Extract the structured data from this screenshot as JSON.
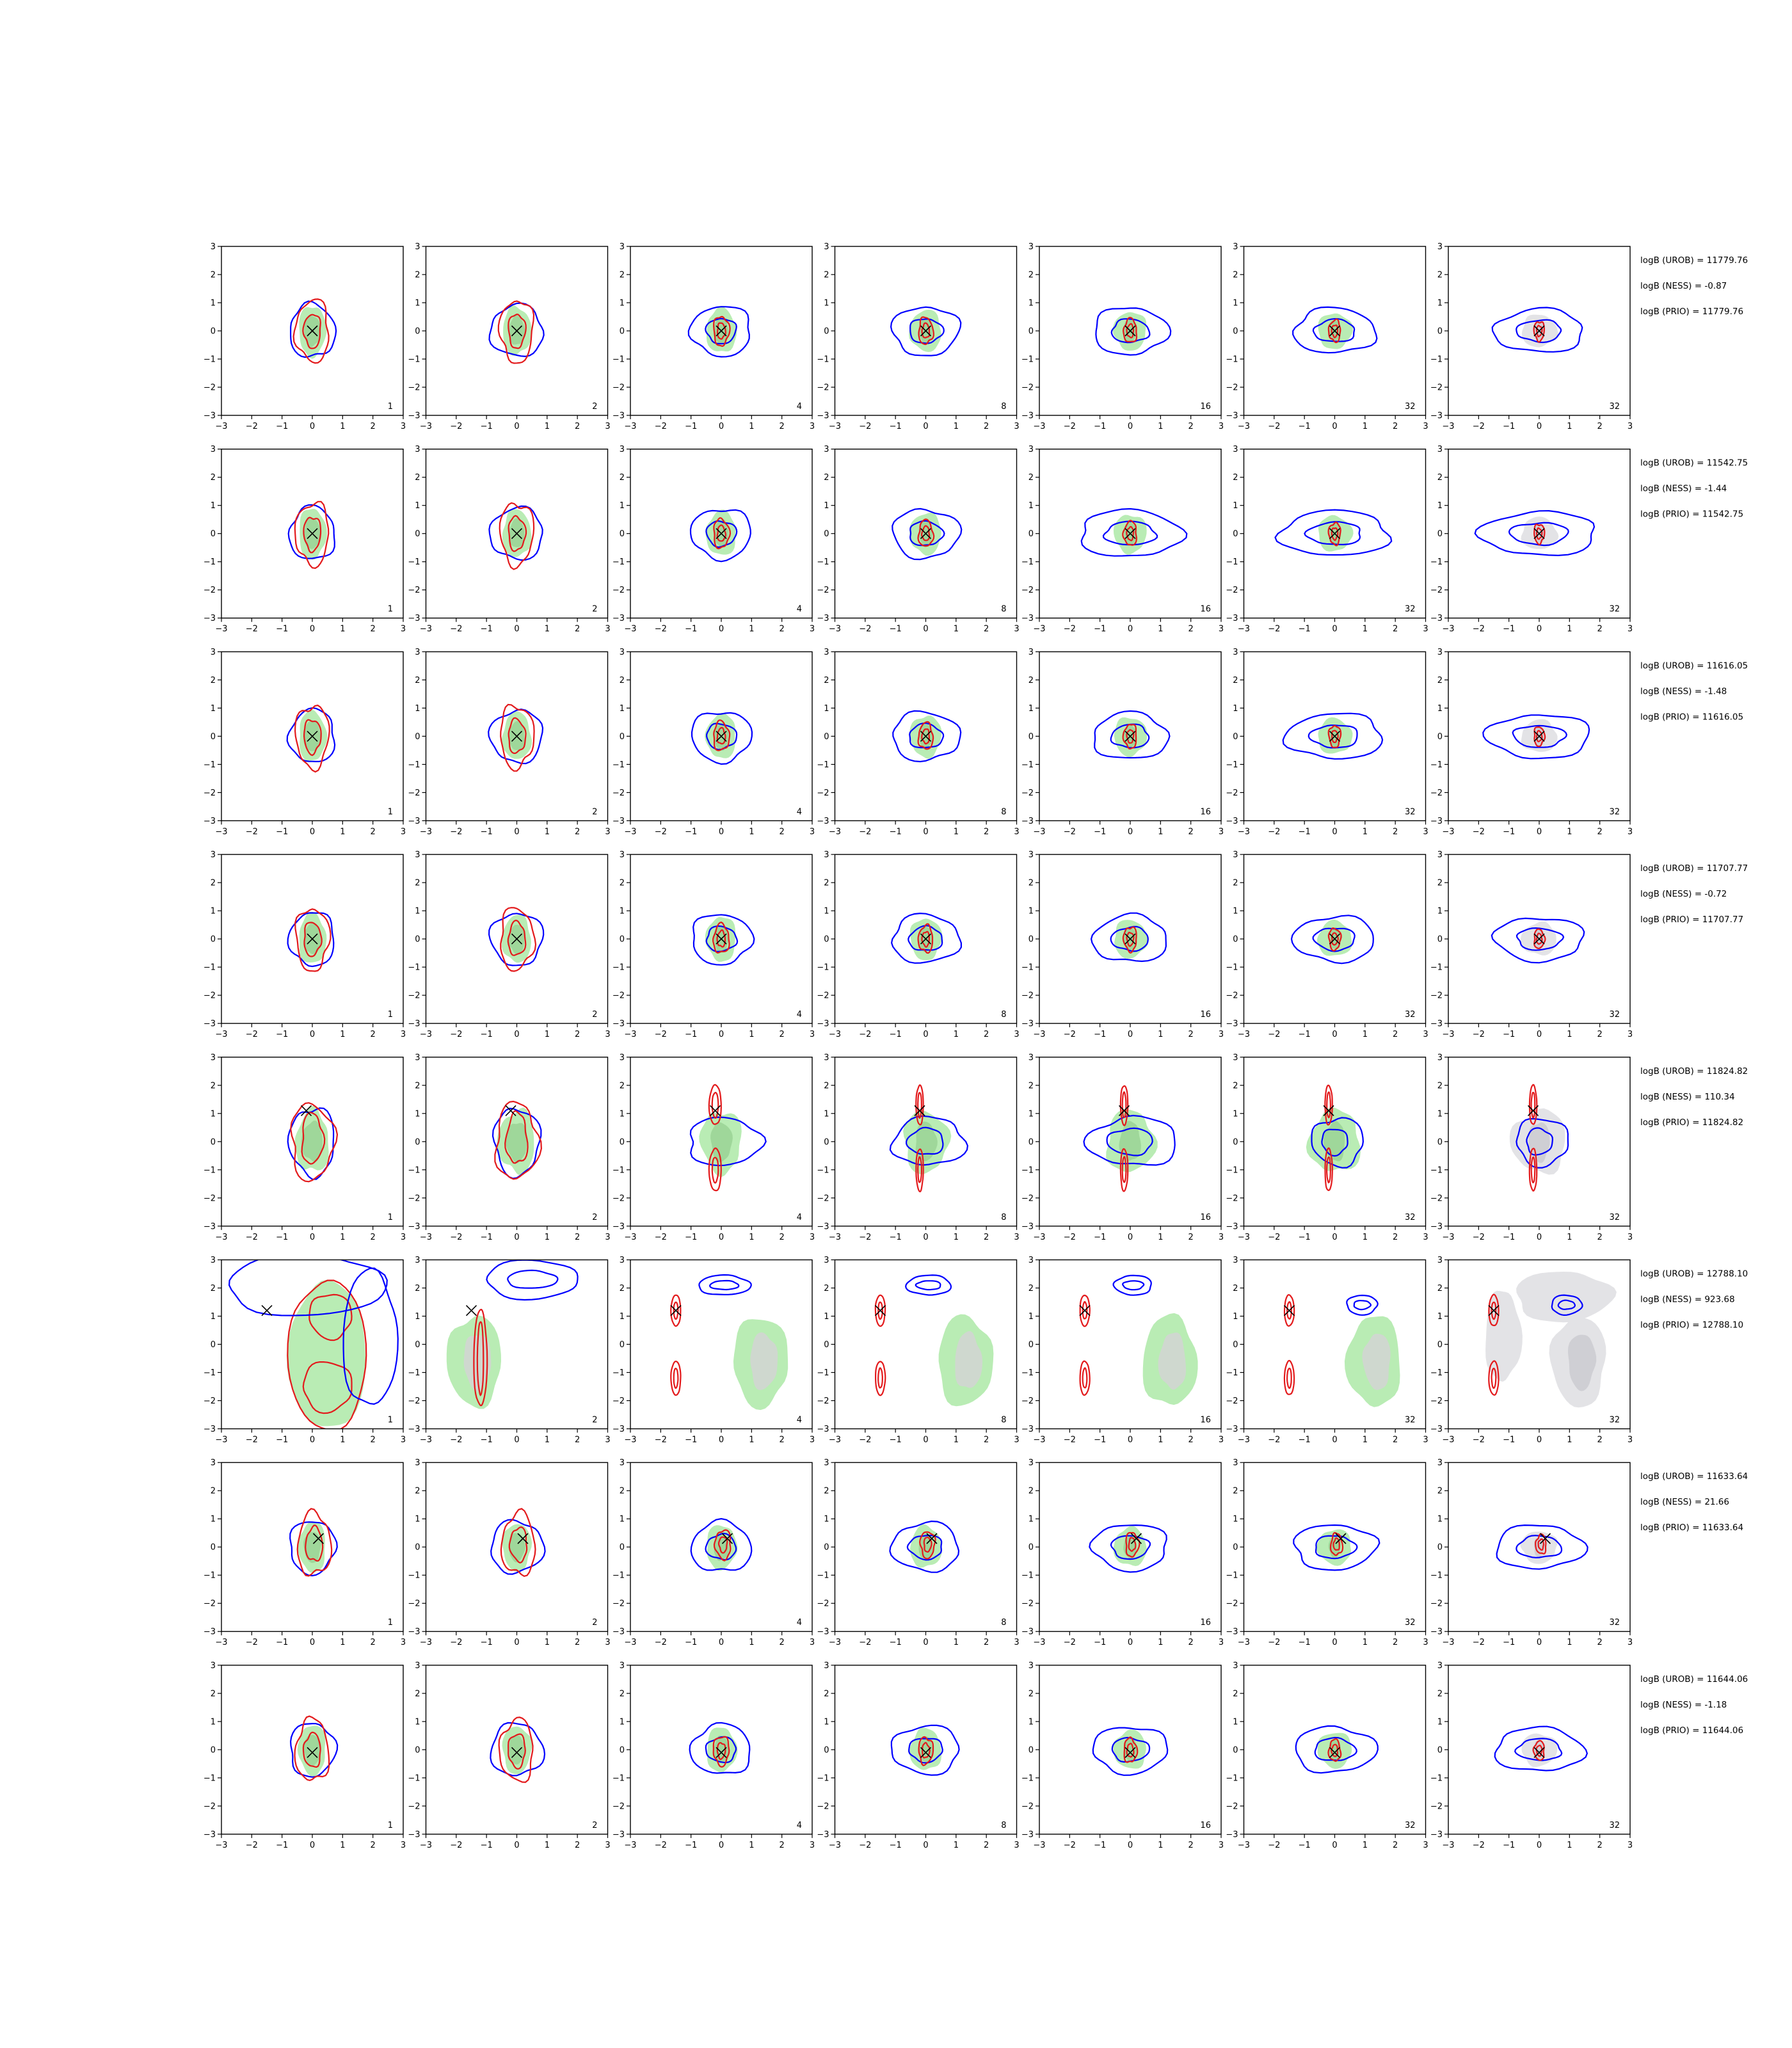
{
  "chart_data": {
    "type": "contour-grid",
    "rows": 8,
    "cols": 7,
    "xlim": [
      -3,
      3
    ],
    "ylim": [
      -3,
      3
    ],
    "xticks": [
      "−3",
      "−2",
      "−1",
      "0",
      "1",
      "2",
      "3"
    ],
    "yticks": [
      "3",
      "2",
      "1",
      "0",
      "−1",
      "−2",
      "−3"
    ],
    "corner_labels": [
      "1",
      "2",
      "4",
      "8",
      "16",
      "32",
      "32"
    ],
    "colors": {
      "blue": "#0000ff",
      "red": "#e31a1c",
      "green_fill": "#b9ecb4",
      "green_inner": "#9fd79a",
      "gray_fill": "#e3e3e6",
      "gray_inner": "#cfcfd4",
      "marker": "#000000"
    },
    "rows_data": [
      {
        "stats": [
          "logB (UROB) = 11779.76",
          "logB (NESS) = -0.87",
          "logB (PRIO) = 11779.76"
        ],
        "x": [
          0.0,
          0.0
        ],
        "style": "compact"
      },
      {
        "stats": [
          "logB (UROB) = 11542.75",
          "logB (NESS) = -1.44",
          "logB (PRIO) = 11542.75"
        ],
        "x": [
          0.0,
          0.0
        ],
        "style": "compact"
      },
      {
        "stats": [
          "logB (UROB) = 11616.05",
          "logB (NESS) = -1.48",
          "logB (PRIO) = 11616.05"
        ],
        "x": [
          0.0,
          0.0
        ],
        "style": "compact"
      },
      {
        "stats": [
          "logB (UROB) = 11707.77",
          "logB (NESS) = -0.72",
          "logB (PRIO) = 11707.77"
        ],
        "x": [
          0.0,
          0.0
        ],
        "style": "compact"
      },
      {
        "stats": [
          "logB (UROB) = 11824.82",
          "logB (NESS) = 110.34",
          "logB (PRIO) = 11824.82"
        ],
        "x": [
          -0.2,
          1.1
        ],
        "style": "split"
      },
      {
        "stats": [
          "logB (UROB) = 12788.10",
          "logB (NESS) = 923.68",
          "logB (PRIO) = 12788.10"
        ],
        "x": [
          -1.5,
          1.2
        ],
        "style": "far"
      },
      {
        "stats": [
          "logB (UROB) = 11633.64",
          "logB (NESS) = 21.66",
          "logB (PRIO) = 11633.64"
        ],
        "x": [
          0.2,
          0.3
        ],
        "style": "compact"
      },
      {
        "stats": [
          "logB (UROB) = 11644.06",
          "logB (NESS) = -1.18",
          "logB (PRIO) = 11644.06"
        ],
        "x": [
          0.0,
          -0.1
        ],
        "style": "compact"
      }
    ]
  }
}
